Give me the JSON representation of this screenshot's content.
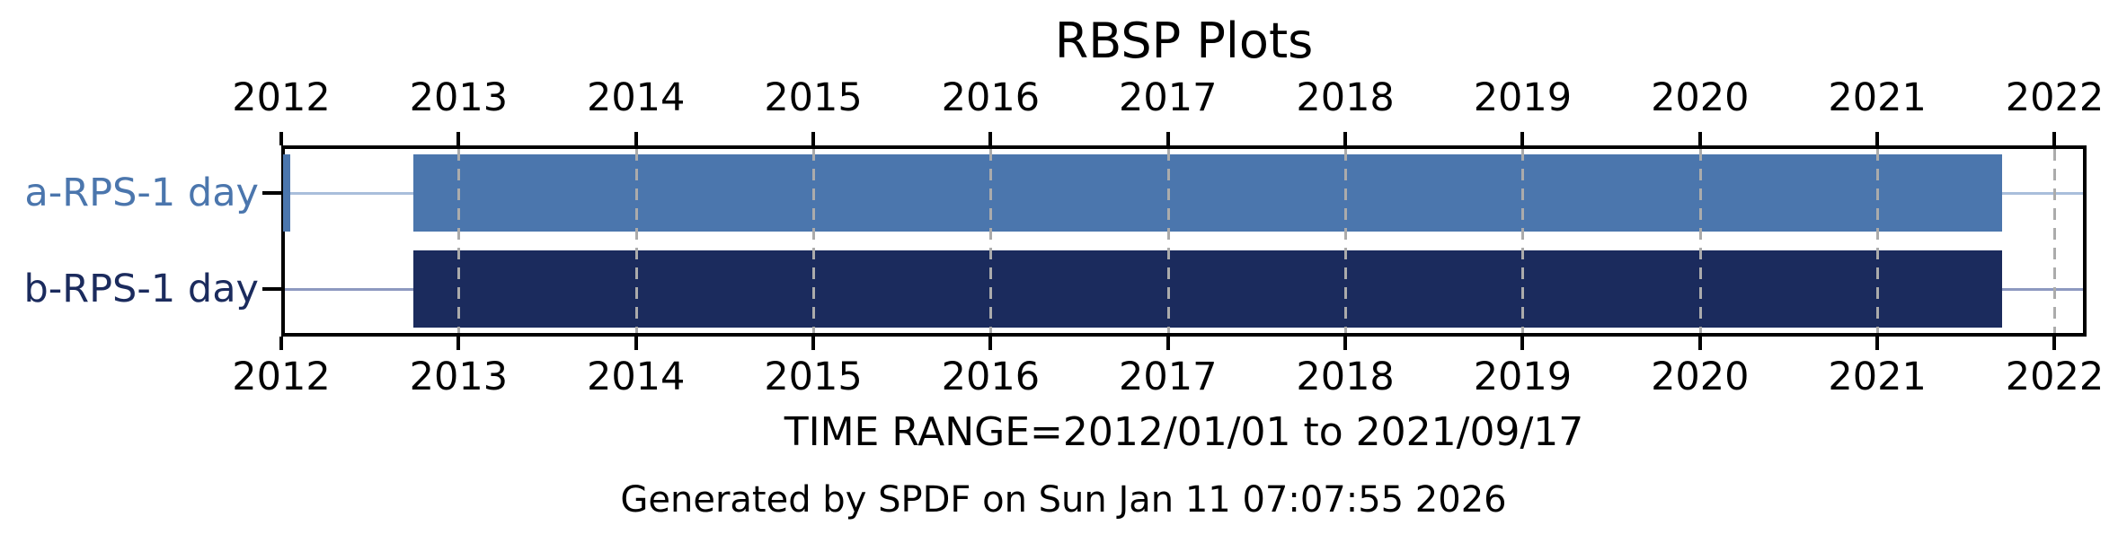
{
  "chart_data": {
    "type": "bar",
    "variant": "horizontal-time-availability",
    "title": "RBSP Plots",
    "footer": "TIME RANGE=2012/01/01 to 2021/09/17",
    "credit": "Generated by SPDF on Sun Jan 11 07:07:55 2026",
    "x_axis": {
      "unit": "year",
      "domain": [
        2012.0,
        2022.18
      ],
      "ticks": [
        2012,
        2013,
        2014,
        2015,
        2016,
        2017,
        2018,
        2019,
        2020,
        2021,
        2022
      ],
      "tick_labels": [
        "2012",
        "2013",
        "2014",
        "2015",
        "2016",
        "2017",
        "2018",
        "2019",
        "2020",
        "2021",
        "2022"
      ],
      "grid": {
        "show": true,
        "style": "dashed",
        "color": "#ababab",
        "over_bars": true
      }
    },
    "rows": [
      {
        "label": "a-RPS-1 day",
        "bar_color": "#4b76ad",
        "label_color": "#4b76ad",
        "baseline_color": "#a9bedb",
        "segments": [
          {
            "start": 2012.012,
            "end": 2012.052
          },
          {
            "start": 2012.745,
            "end": 2021.705
          }
        ]
      },
      {
        "label": "b-RPS-1 day",
        "bar_color": "#1b2b5d",
        "label_color": "#1b2b5d",
        "baseline_color": "#8d99c0",
        "segments": [
          {
            "start": 2012.745,
            "end": 2021.705
          }
        ]
      }
    ],
    "time_range": {
      "start": "2012/01/01",
      "end": "2021/09/17"
    },
    "colors": {
      "axis": "#000000",
      "background": "#ffffff",
      "grid": "#ababab"
    },
    "legend": {
      "show": false
    }
  }
}
